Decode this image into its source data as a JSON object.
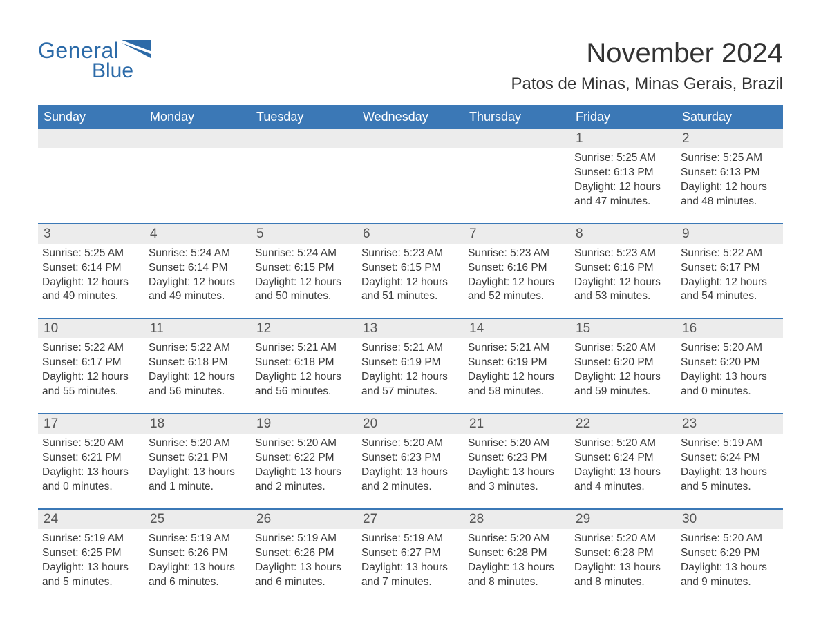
{
  "logo": {
    "word1": "General",
    "word2": "Blue",
    "primary_color": "#2b6aa8"
  },
  "title": "November 2024",
  "location": "Patos de Minas, Minas Gerais, Brazil",
  "header_bg": "#3b78b6",
  "header_fg": "#ffffff",
  "rule_color": "#3b78b6",
  "daynum_bg": "#ececec",
  "text_color": "#3a3a3a",
  "days_of_week": [
    "Sunday",
    "Monday",
    "Tuesday",
    "Wednesday",
    "Thursday",
    "Friday",
    "Saturday"
  ],
  "weeks": [
    [
      null,
      null,
      null,
      null,
      null,
      {
        "n": "1",
        "sr": "5:25 AM",
        "ss": "6:13 PM",
        "dl": "12 hours and 47 minutes."
      },
      {
        "n": "2",
        "sr": "5:25 AM",
        "ss": "6:13 PM",
        "dl": "12 hours and 48 minutes."
      }
    ],
    [
      {
        "n": "3",
        "sr": "5:25 AM",
        "ss": "6:14 PM",
        "dl": "12 hours and 49 minutes."
      },
      {
        "n": "4",
        "sr": "5:24 AM",
        "ss": "6:14 PM",
        "dl": "12 hours and 49 minutes."
      },
      {
        "n": "5",
        "sr": "5:24 AM",
        "ss": "6:15 PM",
        "dl": "12 hours and 50 minutes."
      },
      {
        "n": "6",
        "sr": "5:23 AM",
        "ss": "6:15 PM",
        "dl": "12 hours and 51 minutes."
      },
      {
        "n": "7",
        "sr": "5:23 AM",
        "ss": "6:16 PM",
        "dl": "12 hours and 52 minutes."
      },
      {
        "n": "8",
        "sr": "5:23 AM",
        "ss": "6:16 PM",
        "dl": "12 hours and 53 minutes."
      },
      {
        "n": "9",
        "sr": "5:22 AM",
        "ss": "6:17 PM",
        "dl": "12 hours and 54 minutes."
      }
    ],
    [
      {
        "n": "10",
        "sr": "5:22 AM",
        "ss": "6:17 PM",
        "dl": "12 hours and 55 minutes."
      },
      {
        "n": "11",
        "sr": "5:22 AM",
        "ss": "6:18 PM",
        "dl": "12 hours and 56 minutes."
      },
      {
        "n": "12",
        "sr": "5:21 AM",
        "ss": "6:18 PM",
        "dl": "12 hours and 56 minutes."
      },
      {
        "n": "13",
        "sr": "5:21 AM",
        "ss": "6:19 PM",
        "dl": "12 hours and 57 minutes."
      },
      {
        "n": "14",
        "sr": "5:21 AM",
        "ss": "6:19 PM",
        "dl": "12 hours and 58 minutes."
      },
      {
        "n": "15",
        "sr": "5:20 AM",
        "ss": "6:20 PM",
        "dl": "12 hours and 59 minutes."
      },
      {
        "n": "16",
        "sr": "5:20 AM",
        "ss": "6:20 PM",
        "dl": "13 hours and 0 minutes."
      }
    ],
    [
      {
        "n": "17",
        "sr": "5:20 AM",
        "ss": "6:21 PM",
        "dl": "13 hours and 0 minutes."
      },
      {
        "n": "18",
        "sr": "5:20 AM",
        "ss": "6:21 PM",
        "dl": "13 hours and 1 minute."
      },
      {
        "n": "19",
        "sr": "5:20 AM",
        "ss": "6:22 PM",
        "dl": "13 hours and 2 minutes."
      },
      {
        "n": "20",
        "sr": "5:20 AM",
        "ss": "6:23 PM",
        "dl": "13 hours and 2 minutes."
      },
      {
        "n": "21",
        "sr": "5:20 AM",
        "ss": "6:23 PM",
        "dl": "13 hours and 3 minutes."
      },
      {
        "n": "22",
        "sr": "5:20 AM",
        "ss": "6:24 PM",
        "dl": "13 hours and 4 minutes."
      },
      {
        "n": "23",
        "sr": "5:19 AM",
        "ss": "6:24 PM",
        "dl": "13 hours and 5 minutes."
      }
    ],
    [
      {
        "n": "24",
        "sr": "5:19 AM",
        "ss": "6:25 PM",
        "dl": "13 hours and 5 minutes."
      },
      {
        "n": "25",
        "sr": "5:19 AM",
        "ss": "6:26 PM",
        "dl": "13 hours and 6 minutes."
      },
      {
        "n": "26",
        "sr": "5:19 AM",
        "ss": "6:26 PM",
        "dl": "13 hours and 6 minutes."
      },
      {
        "n": "27",
        "sr": "5:19 AM",
        "ss": "6:27 PM",
        "dl": "13 hours and 7 minutes."
      },
      {
        "n": "28",
        "sr": "5:20 AM",
        "ss": "6:28 PM",
        "dl": "13 hours and 8 minutes."
      },
      {
        "n": "29",
        "sr": "5:20 AM",
        "ss": "6:28 PM",
        "dl": "13 hours and 8 minutes."
      },
      {
        "n": "30",
        "sr": "5:20 AM",
        "ss": "6:29 PM",
        "dl": "13 hours and 9 minutes."
      }
    ]
  ],
  "labels": {
    "sunrise": "Sunrise:",
    "sunset": "Sunset:",
    "daylight": "Daylight:"
  }
}
